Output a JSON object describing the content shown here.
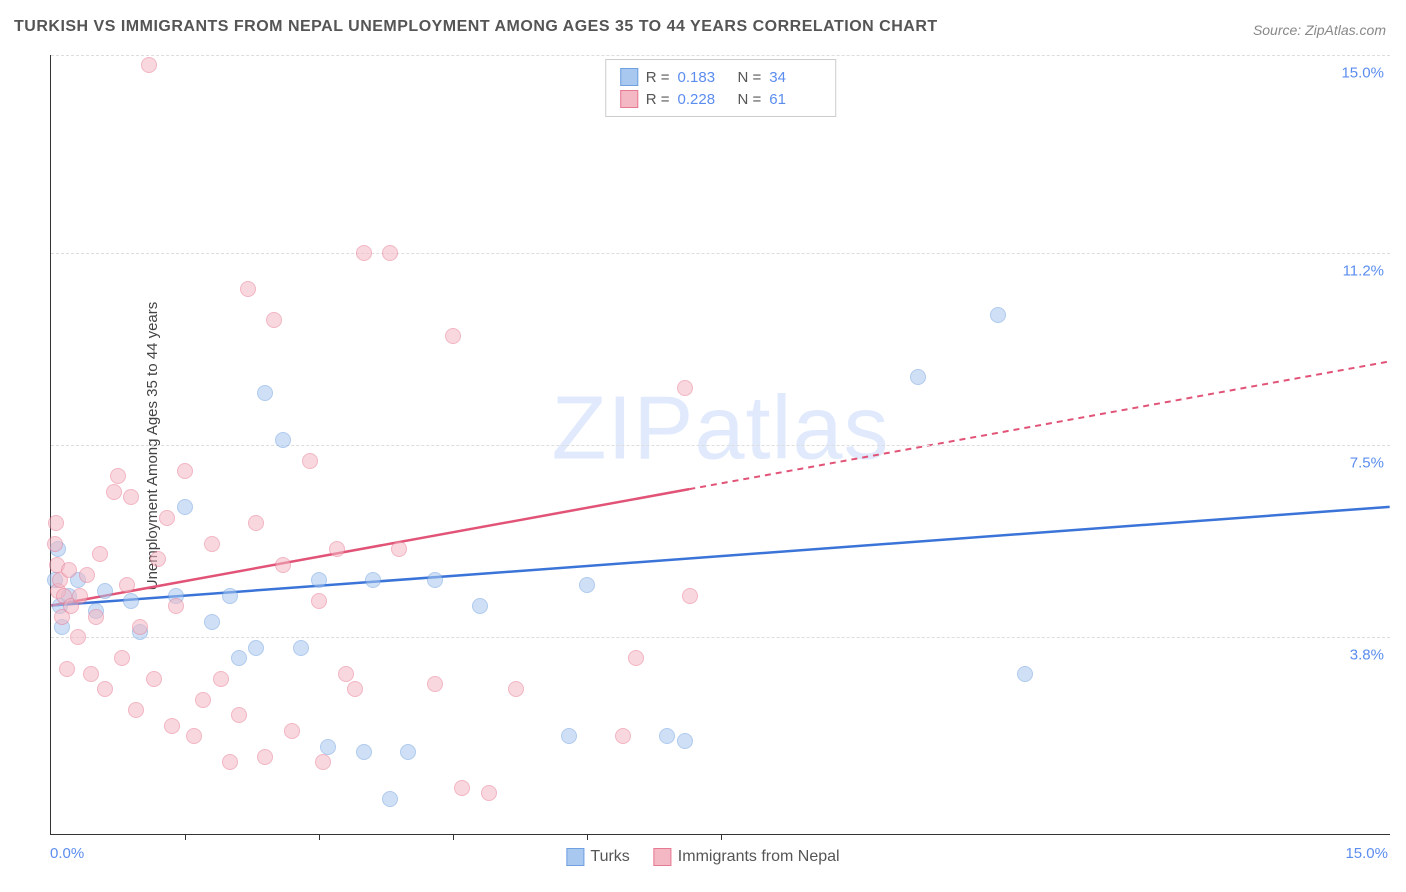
{
  "title": "TURKISH VS IMMIGRANTS FROM NEPAL UNEMPLOYMENT AMONG AGES 35 TO 44 YEARS CORRELATION CHART",
  "source": "Source: ZipAtlas.com",
  "ylabel": "Unemployment Among Ages 35 to 44 years",
  "watermark": "ZIPatlas",
  "chart": {
    "type": "scatter-correlation",
    "background_color": "#ffffff",
    "grid_color": "#dddddd",
    "axis_color": "#333333",
    "xlim": [
      0.0,
      15.0
    ],
    "ylim": [
      0.0,
      15.0
    ],
    "x_tickmarks": [
      1.5,
      3.0,
      4.5,
      6.0,
      7.5
    ],
    "x_tick_labels": {
      "min": "0.0%",
      "max": "15.0%"
    },
    "y_ticks": [
      {
        "value": 3.8,
        "label": "3.8%"
      },
      {
        "value": 7.5,
        "label": "7.5%"
      },
      {
        "value": 11.2,
        "label": "11.2%"
      },
      {
        "value": 15.0,
        "label": "15.0%"
      }
    ],
    "label_color": "#5b8def",
    "label_fontsize": 15,
    "point_radius": 8,
    "point_opacity": 0.55,
    "series": [
      {
        "id": "turks",
        "label": "Turks",
        "fill": "#a8c8f0",
        "stroke": "#6fa0e0",
        "reg_color": "#3b74d8",
        "R": "0.183",
        "N": "34",
        "regression": {
          "x1": 0.0,
          "y1": 4.4,
          "x2": 15.0,
          "y2": 6.3,
          "dash_from_x": 15.0
        },
        "points": [
          [
            0.05,
            4.9
          ],
          [
            0.08,
            5.5
          ],
          [
            0.1,
            4.4
          ],
          [
            0.12,
            4.0
          ],
          [
            0.2,
            4.6
          ],
          [
            0.3,
            4.9
          ],
          [
            0.5,
            4.3
          ],
          [
            0.6,
            4.7
          ],
          [
            0.9,
            4.5
          ],
          [
            1.0,
            3.9
          ],
          [
            1.4,
            4.6
          ],
          [
            1.5,
            6.3
          ],
          [
            1.8,
            4.1
          ],
          [
            2.0,
            4.6
          ],
          [
            2.1,
            3.4
          ],
          [
            2.3,
            3.6
          ],
          [
            2.4,
            8.5
          ],
          [
            2.6,
            7.6
          ],
          [
            2.8,
            3.6
          ],
          [
            3.0,
            4.9
          ],
          [
            3.1,
            1.7
          ],
          [
            3.5,
            1.6
          ],
          [
            3.6,
            4.9
          ],
          [
            3.8,
            0.7
          ],
          [
            4.0,
            1.6
          ],
          [
            4.3,
            4.9
          ],
          [
            4.8,
            4.4
          ],
          [
            5.8,
            1.9
          ],
          [
            6.0,
            4.8
          ],
          [
            6.9,
            1.9
          ],
          [
            7.1,
            1.8
          ],
          [
            9.7,
            8.8
          ],
          [
            10.6,
            10.0
          ],
          [
            10.9,
            3.1
          ]
        ]
      },
      {
        "id": "nepal",
        "label": "Immigrants from Nepal",
        "fill": "#f3b8c4",
        "stroke": "#e77a93",
        "reg_color": "#e15377",
        "R": "0.228",
        "N": "61",
        "regression": {
          "x1": 0.0,
          "y1": 4.4,
          "x2": 15.0,
          "y2": 9.1,
          "dash_from_x": 7.15
        },
        "points": [
          [
            0.05,
            5.6
          ],
          [
            0.06,
            6.0
          ],
          [
            0.07,
            5.2
          ],
          [
            0.08,
            4.7
          ],
          [
            0.1,
            4.9
          ],
          [
            0.12,
            4.2
          ],
          [
            0.15,
            4.6
          ],
          [
            0.18,
            3.2
          ],
          [
            0.2,
            5.1
          ],
          [
            0.22,
            4.4
          ],
          [
            0.3,
            3.8
          ],
          [
            0.32,
            4.6
          ],
          [
            0.4,
            5.0
          ],
          [
            0.45,
            3.1
          ],
          [
            0.5,
            4.2
          ],
          [
            0.55,
            5.4
          ],
          [
            0.6,
            2.8
          ],
          [
            0.7,
            6.6
          ],
          [
            0.75,
            6.9
          ],
          [
            0.8,
            3.4
          ],
          [
            0.85,
            4.8
          ],
          [
            0.9,
            6.5
          ],
          [
            0.95,
            2.4
          ],
          [
            1.0,
            4.0
          ],
          [
            1.1,
            14.8
          ],
          [
            1.15,
            3.0
          ],
          [
            1.2,
            5.3
          ],
          [
            1.3,
            6.1
          ],
          [
            1.35,
            2.1
          ],
          [
            1.4,
            4.4
          ],
          [
            1.5,
            7.0
          ],
          [
            1.6,
            1.9
          ],
          [
            1.7,
            2.6
          ],
          [
            1.8,
            5.6
          ],
          [
            1.9,
            3.0
          ],
          [
            2.0,
            1.4
          ],
          [
            2.1,
            2.3
          ],
          [
            2.2,
            10.5
          ],
          [
            2.3,
            6.0
          ],
          [
            2.4,
            1.5
          ],
          [
            2.5,
            9.9
          ],
          [
            2.6,
            5.2
          ],
          [
            2.7,
            2.0
          ],
          [
            2.9,
            7.2
          ],
          [
            3.0,
            4.5
          ],
          [
            3.05,
            1.4
          ],
          [
            3.2,
            5.5
          ],
          [
            3.3,
            3.1
          ],
          [
            3.4,
            2.8
          ],
          [
            3.5,
            11.2
          ],
          [
            3.8,
            11.2
          ],
          [
            3.9,
            5.5
          ],
          [
            4.3,
            2.9
          ],
          [
            4.5,
            9.6
          ],
          [
            4.6,
            0.9
          ],
          [
            4.9,
            0.8
          ],
          [
            5.2,
            2.8
          ],
          [
            6.4,
            1.9
          ],
          [
            6.55,
            3.4
          ],
          [
            7.1,
            8.6
          ],
          [
            7.15,
            4.6
          ]
        ]
      }
    ]
  },
  "legend_top": {
    "R_label": "R  =",
    "N_label": "N  ="
  },
  "legend_bottom": {}
}
